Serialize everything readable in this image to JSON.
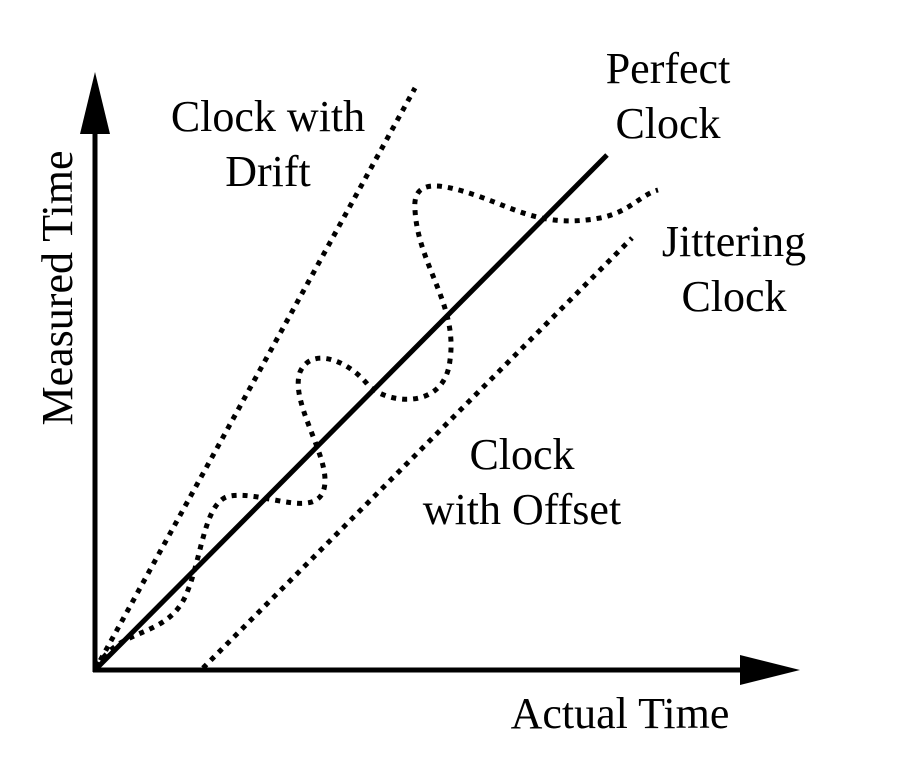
{
  "axes": {
    "x_label": "Actual Time",
    "y_label": "Measured Time"
  },
  "curves": {
    "drift": [
      "Clock with",
      "Drift"
    ],
    "perfect": [
      "Perfect",
      "Clock"
    ],
    "jittering": [
      "Jittering",
      "Clock"
    ],
    "offset": [
      "Clock",
      "with Offset"
    ]
  },
  "colors": {
    "ink": "#000000",
    "background": "#ffffff"
  }
}
